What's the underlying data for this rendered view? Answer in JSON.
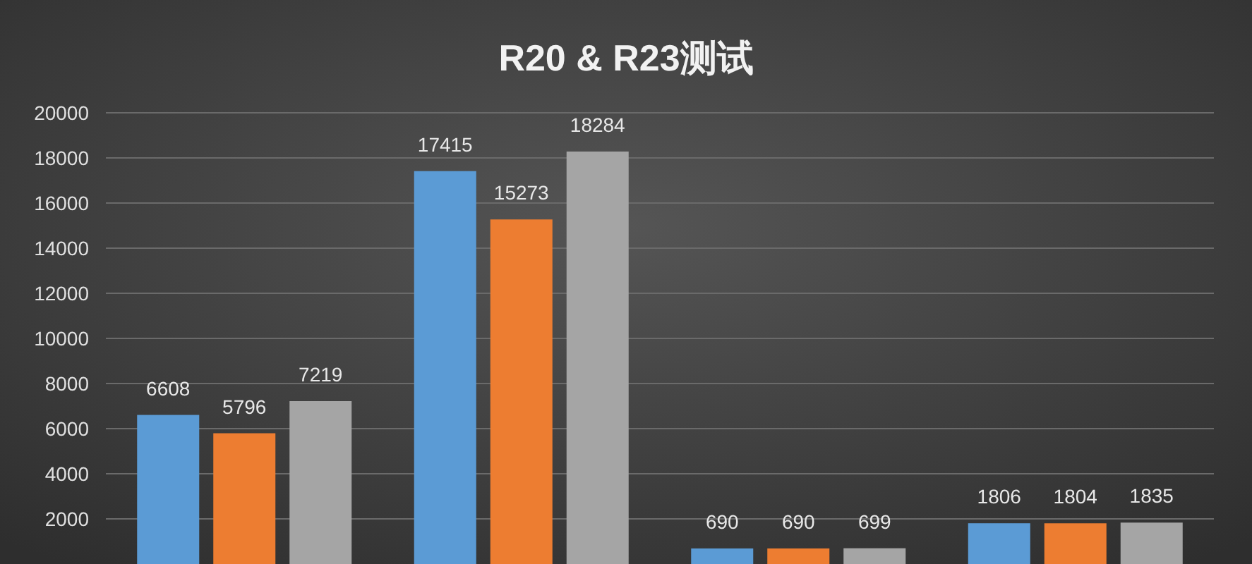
{
  "chart_data": {
    "type": "bar",
    "title": "R20 & R23测试",
    "categories": [
      null,
      null,
      null,
      null
    ],
    "series": [
      {
        "color": "#5b9bd5",
        "values": [
          6608,
          17415,
          690,
          1806
        ]
      },
      {
        "color": "#ed7d31",
        "values": [
          5796,
          15273,
          690,
          1804
        ]
      },
      {
        "color": "#a5a5a5",
        "values": [
          7219,
          18284,
          699,
          1835
        ]
      }
    ],
    "ylim": [
      0,
      20000
    ],
    "yticks": [
      2000,
      4000,
      6000,
      8000,
      10000,
      12000,
      14000,
      16000,
      18000,
      20000
    ],
    "grid": "y",
    "data_labels": true
  }
}
